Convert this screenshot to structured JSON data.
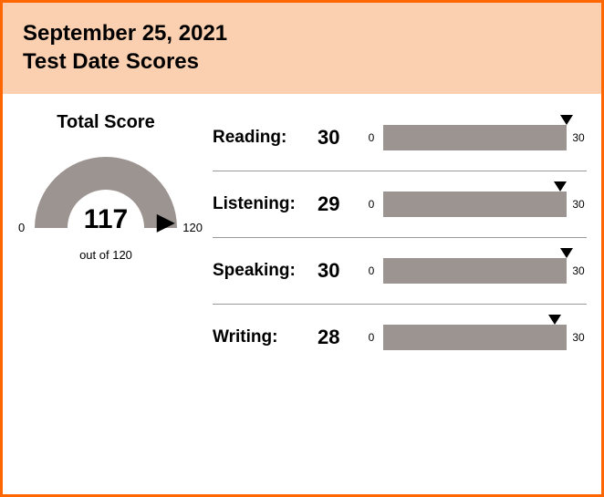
{
  "header": {
    "date": "September 25, 2021",
    "title": "Test Date Scores"
  },
  "colors": {
    "border": "#ff6600",
    "header_bg": "#fbd0b1",
    "gauge_fill": "#9c9490",
    "bar_fill": "#9c9490",
    "marker": "#000000",
    "text": "#000000"
  },
  "total": {
    "label": "Total Score",
    "value": 117,
    "min": 0,
    "max": 120,
    "caption": "out of 120"
  },
  "skills": [
    {
      "label": "Reading:",
      "score": 30,
      "min": 0,
      "max": 30
    },
    {
      "label": "Listening:",
      "score": 29,
      "min": 0,
      "max": 30
    },
    {
      "label": "Speaking:",
      "score": 30,
      "min": 0,
      "max": 30
    },
    {
      "label": "Writing:",
      "score": 28,
      "min": 0,
      "max": 30
    }
  ]
}
